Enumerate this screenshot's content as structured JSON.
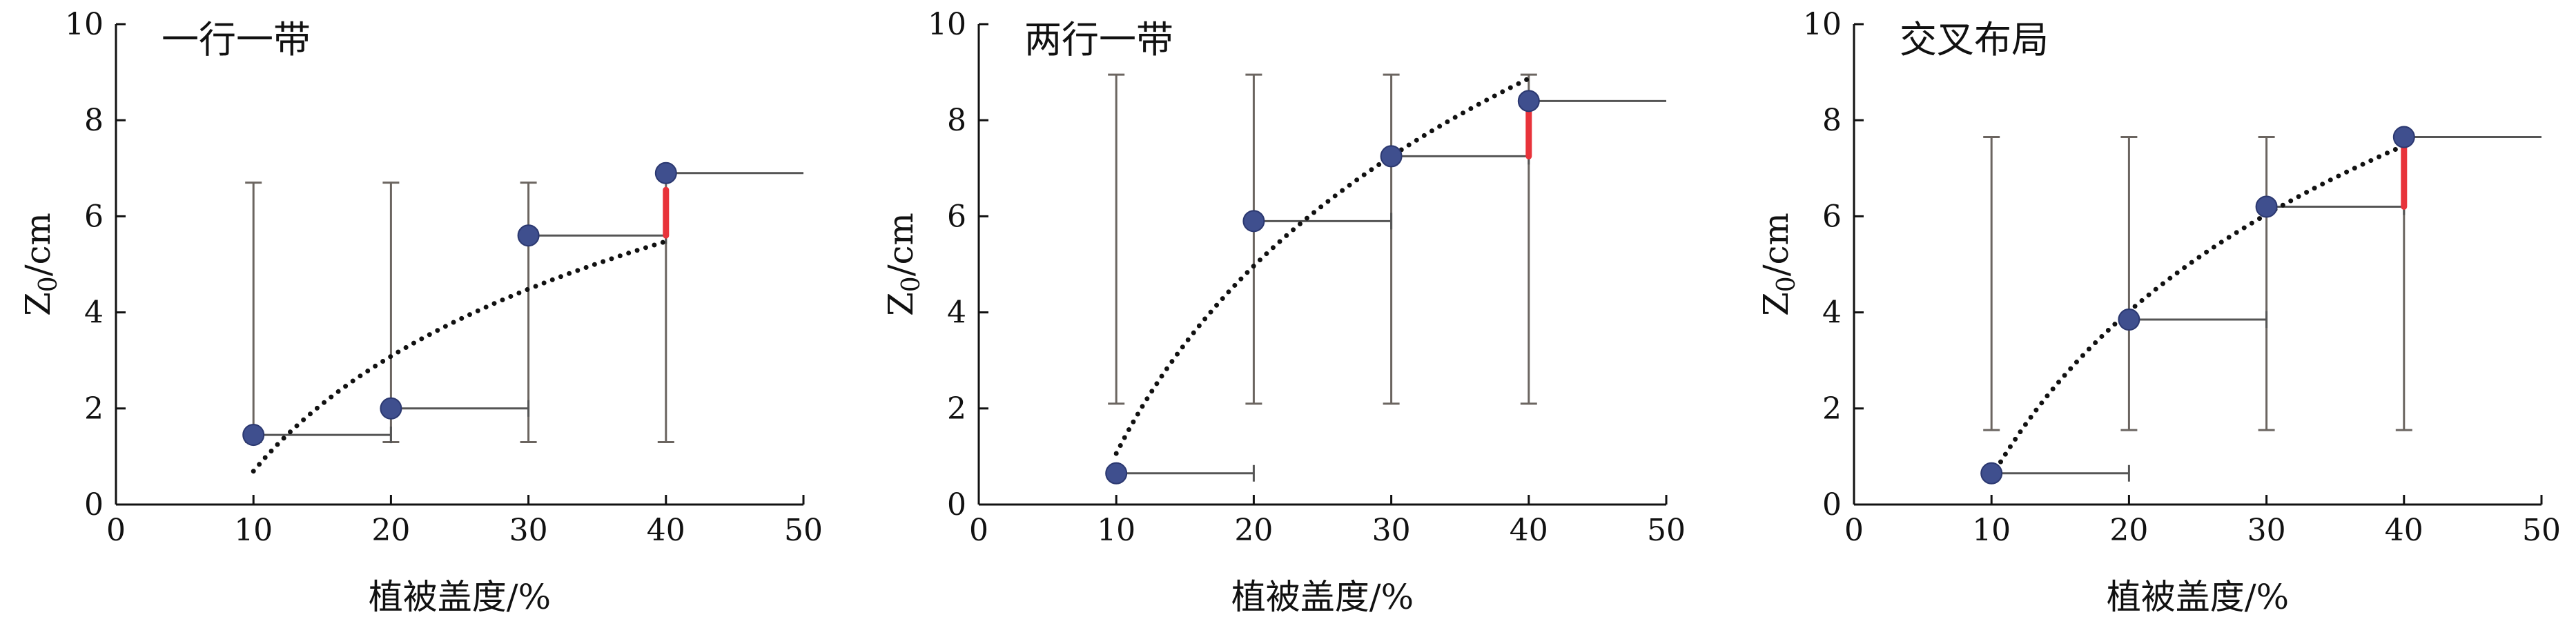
{
  "chart_data": [
    {
      "type": "scatter",
      "title": "一行一带",
      "xlabel": "植被盖度/%",
      "ylabel_main": "Z",
      "ylabel_sub": "0",
      "ylabel_unit": "/cm",
      "xlim": [
        0,
        50
      ],
      "ylim": [
        0,
        10
      ],
      "xticks": [
        "0",
        "10",
        "20",
        "30",
        "40",
        "50"
      ],
      "yticks": [
        "0",
        "2",
        "4",
        "6",
        "8",
        "10"
      ],
      "points": [
        {
          "x": 10,
          "y": 1.45
        },
        {
          "x": 20,
          "y": 2.0
        },
        {
          "x": 30,
          "y": 5.6
        },
        {
          "x": 40,
          "y": 6.9
        }
      ],
      "error_bars": [
        {
          "x": 10,
          "low": 1.3,
          "high": 6.7
        },
        {
          "x": 20,
          "low": 1.3,
          "high": 6.7
        },
        {
          "x": 30,
          "low": 1.3,
          "high": 6.7
        },
        {
          "x": 40,
          "low": 1.3,
          "high": 6.9
        }
      ],
      "steps": [
        {
          "x1": 10,
          "x2": 20,
          "y": 1.45
        },
        {
          "x1": 20,
          "x2": 30,
          "y": 2.0
        },
        {
          "x1": 30,
          "x2": 40,
          "y": 5.6
        },
        {
          "x1": 40,
          "x2": 50,
          "y": 6.9
        }
      ],
      "trend": {
        "a": 3.45,
        "b": -7.25,
        "x_start": 10,
        "x_end": 40
      },
      "red_segment": {
        "x": 40,
        "y1": 5.6,
        "y2": 6.55
      }
    },
    {
      "type": "scatter",
      "title": "两行一带",
      "xlabel": "植被盖度/%",
      "ylabel_main": "Z",
      "ylabel_sub": "0",
      "ylabel_unit": "/cm",
      "xlim": [
        0,
        50
      ],
      "ylim": [
        0,
        10
      ],
      "xticks": [
        "0",
        "10",
        "20",
        "30",
        "40",
        "50"
      ],
      "yticks": [
        "0",
        "2",
        "4",
        "6",
        "8",
        "10"
      ],
      "points": [
        {
          "x": 10,
          "y": 0.65
        },
        {
          "x": 20,
          "y": 5.9
        },
        {
          "x": 30,
          "y": 7.25
        },
        {
          "x": 40,
          "y": 8.4
        }
      ],
      "error_bars": [
        {
          "x": 10,
          "low": 2.1,
          "high": 8.95
        },
        {
          "x": 20,
          "low": 2.1,
          "high": 8.95
        },
        {
          "x": 30,
          "low": 2.1,
          "high": 8.95
        },
        {
          "x": 40,
          "low": 2.1,
          "high": 8.95
        }
      ],
      "steps": [
        {
          "x1": 10,
          "x2": 20,
          "y": 0.65
        },
        {
          "x1": 20,
          "x2": 30,
          "y": 5.9
        },
        {
          "x1": 30,
          "x2": 40,
          "y": 7.25
        },
        {
          "x1": 40,
          "x2": 50,
          "y": 8.4
        }
      ],
      "trend": {
        "a": 5.63,
        "b": -11.9,
        "x_start": 10,
        "x_end": 40
      },
      "red_segment": {
        "x": 40,
        "y1": 7.25,
        "y2": 8.4
      }
    },
    {
      "type": "scatter",
      "title": "交叉布局",
      "xlabel": "植被盖度/%",
      "ylabel_main": "Z",
      "ylabel_sub": "0",
      "ylabel_unit": "/cm",
      "xlim": [
        0,
        50
      ],
      "ylim": [
        0,
        10
      ],
      "xticks": [
        "0",
        "10",
        "20",
        "30",
        "40",
        "50"
      ],
      "yticks": [
        "0",
        "2",
        "4",
        "6",
        "8",
        "10"
      ],
      "points": [
        {
          "x": 10,
          "y": 0.65
        },
        {
          "x": 20,
          "y": 3.85
        },
        {
          "x": 30,
          "y": 6.2
        },
        {
          "x": 40,
          "y": 7.65
        }
      ],
      "error_bars": [
        {
          "x": 10,
          "low": 1.55,
          "high": 7.65
        },
        {
          "x": 20,
          "low": 1.55,
          "high": 7.65
        },
        {
          "x": 30,
          "low": 1.55,
          "high": 7.65
        },
        {
          "x": 40,
          "low": 1.55,
          "high": 7.65
        }
      ],
      "steps": [
        {
          "x1": 10,
          "x2": 20,
          "y": 0.65
        },
        {
          "x1": 20,
          "x2": 30,
          "y": 3.85
        },
        {
          "x1": 30,
          "x2": 40,
          "y": 6.2
        },
        {
          "x1": 40,
          "x2": 50,
          "y": 7.65
        }
      ],
      "trend": {
        "a": 4.98,
        "b": -10.9,
        "x_start": 10,
        "x_end": 40
      },
      "red_segment": {
        "x": 40,
        "y1": 6.2,
        "y2": 7.65
      }
    }
  ],
  "colors": {
    "point": "#3f4f8e",
    "point_edge": "#2b3870",
    "error_bar": "#6b6560",
    "step_line": "#555555",
    "trend": "#111111",
    "red_segment": "#e8333a",
    "axis": "#111111"
  }
}
